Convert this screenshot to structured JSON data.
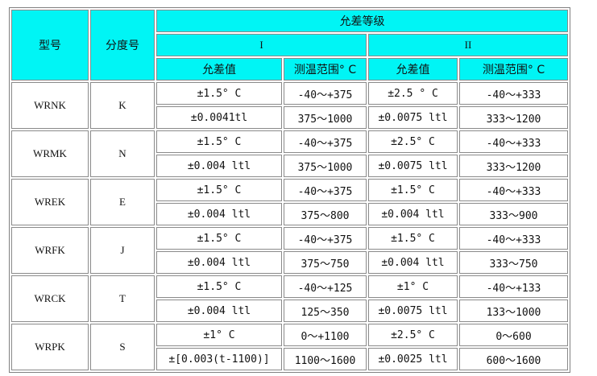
{
  "header": {
    "model": "型号",
    "graduation": "分度号",
    "tolerance_class": "允差等级",
    "class_i": "I",
    "class_ii": "II",
    "tolerance": "允差值",
    "range": "测温范围° C"
  },
  "rows": [
    {
      "model": "WRNK",
      "grad": "K",
      "r": [
        [
          "±1.5° C",
          "-40～+375",
          "±2.5 ° C",
          "-40～+333"
        ],
        [
          "±0.0041tl",
          "375～1000",
          "±0.0075 ltl",
          "333～1200"
        ]
      ]
    },
    {
      "model": "WRMK",
      "grad": "N",
      "r": [
        [
          "±1.5° C",
          "-40～+375",
          "±2.5° C",
          "-40～+333"
        ],
        [
          "±0.004 ltl",
          "375～1000",
          "±0.0075 ltl",
          "333～1200"
        ]
      ]
    },
    {
      "model": "WREK",
      "grad": "E",
      "r": [
        [
          "±1.5° C",
          "-40～+375",
          "±1.5° C",
          "-40～+333"
        ],
        [
          "±0.004 ltl",
          "375～800",
          "±0.004 ltl",
          "333～900"
        ]
      ]
    },
    {
      "model": "WRFK",
      "grad": "J",
      "r": [
        [
          "±1.5° C",
          "-40～+375",
          "±1.5° C",
          "-40～+333"
        ],
        [
          "±0.004 ltl",
          "375～750",
          "±0.004 ltl",
          "333～750"
        ]
      ]
    },
    {
      "model": "WRCK",
      "grad": "T",
      "r": [
        [
          "±1.5° C",
          "-40～+125",
          "±1° C",
          "-40～+133"
        ],
        [
          "±0.004 ltl",
          "125～350",
          "±0.0075 ltl",
          "133～1000"
        ]
      ]
    },
    {
      "model": "WRPK",
      "grad": "S",
      "r": [
        [
          "±1° C",
          "0～+1100",
          "±2.5° C",
          "0～600"
        ],
        [
          "±[0.003(t-1100)]",
          "1100～1600",
          "±0.0025 ltl",
          "600～1600"
        ]
      ]
    }
  ]
}
